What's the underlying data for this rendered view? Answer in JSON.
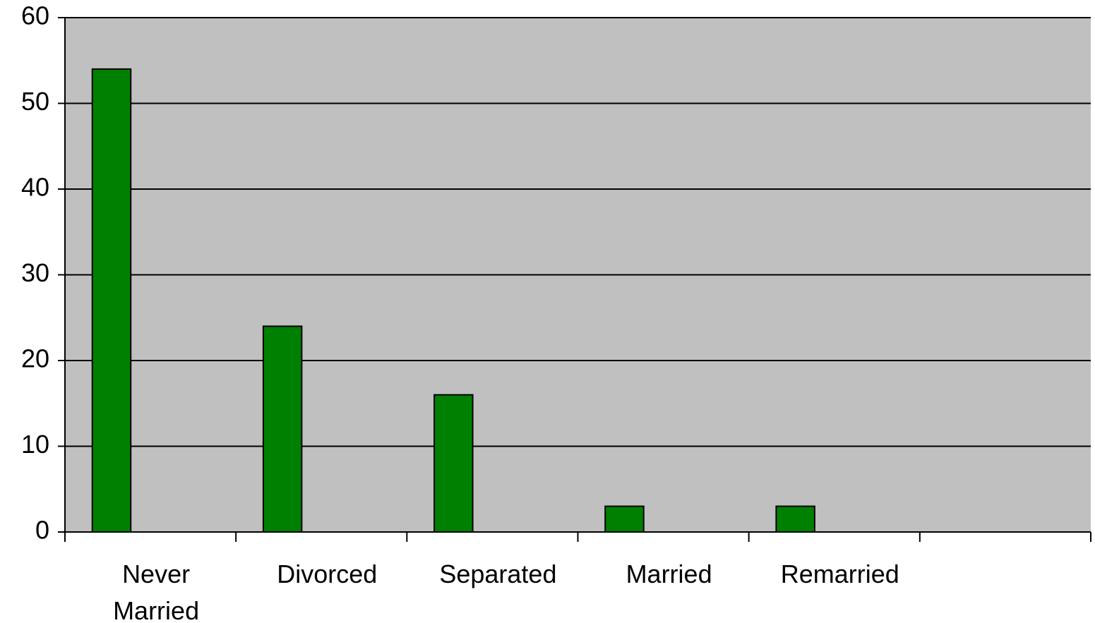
{
  "chart_data": {
    "type": "bar",
    "categories": [
      "Never Married",
      "Divorced",
      "Separated",
      "Married",
      "Remarried",
      null
    ],
    "values": [
      54,
      24,
      16,
      3,
      3,
      null
    ],
    "color": "#008000",
    "plot_background": "#c0c0c0",
    "ylim": [
      0,
      60
    ],
    "yticks": [
      0,
      10,
      20,
      30,
      40,
      50,
      60
    ],
    "grid": true
  }
}
